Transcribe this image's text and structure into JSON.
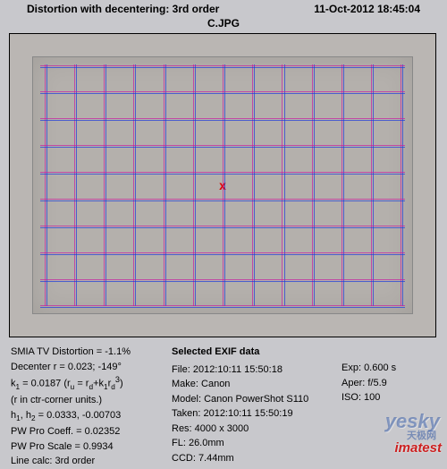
{
  "header": {
    "title": "Distortion with decentering:  3rd order",
    "date": "11-Oct-2012 18:45:04",
    "subtitle": "C.JPG"
  },
  "chart": {
    "center_marker": "x",
    "grid": {
      "v_count": 13,
      "h_count": 10,
      "color_blue": "#1e3cdc",
      "color_magenta": "#c81ea0"
    }
  },
  "left": {
    "l1": "SMIA TV Distortion = -1.1%",
    "l2_a": "Decenter r = 0.023;  -149",
    "l2_deg": "°",
    "l3_html": "k<sub>1</sub> = 0.0187  (r<sub>u</sub> = r<sub>d</sub>+k<sub>1</sub>r<sub>d</sub><sup>3</sup>)",
    "l4": "(r in ctr-corner units.)",
    "l5_html": "h<sub>1</sub>, h<sub>2</sub> = 0.0333, -0.00703",
    "l6": "PW Pro Coeff. = 0.02352",
    "l7": "PW Pro Scale = 0.9934",
    "l8": "Line calc: 3rd order"
  },
  "exif": {
    "header": "Selected EXIF data",
    "file": "File:   2012:10:11 15:50:18",
    "make": "Make:  Canon",
    "model": "Model: Canon PowerShot S110",
    "taken": "Taken: 2012:10:11 15:50:19",
    "res": "Res:   4000 x 3000",
    "fl": "FL:    26.0mm",
    "ccd": "CCD:   7.44mm"
  },
  "right": {
    "exp": "Exp:  0.600 s",
    "aper": "Aper:  f/5.9",
    "iso": "ISO:   100"
  },
  "watermarks": {
    "yesky": "yesky",
    "yesky_sub": "天极网",
    "imatest": "imatest"
  }
}
